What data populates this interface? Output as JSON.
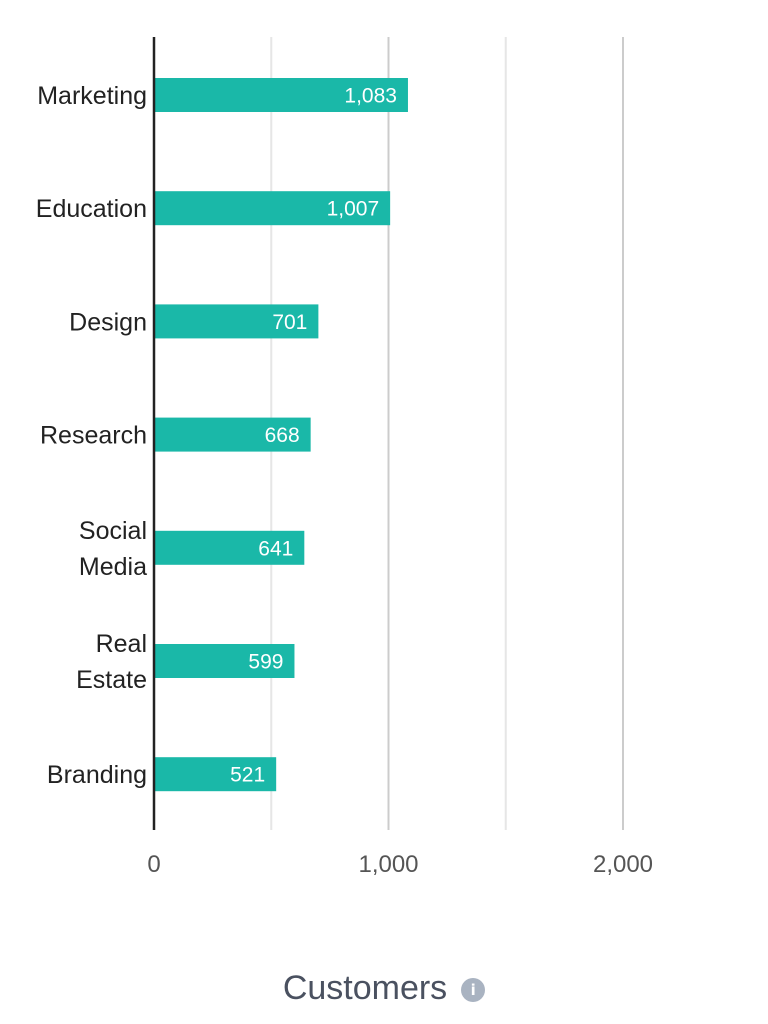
{
  "chart_data": {
    "type": "bar",
    "orientation": "horizontal",
    "categories": [
      "Marketing",
      "Education",
      "Design",
      "Research",
      "Social Media",
      "Real Estate",
      "Branding"
    ],
    "category_lines": [
      [
        "Marketing"
      ],
      [
        "Education"
      ],
      [
        "Design"
      ],
      [
        "Research"
      ],
      [
        "Social",
        "Media"
      ],
      [
        "Real",
        "Estate"
      ],
      [
        "Branding"
      ]
    ],
    "values": [
      1083,
      1007,
      701,
      668,
      641,
      599,
      521
    ],
    "value_labels": [
      "1,083",
      "1,007",
      "701",
      "668",
      "641",
      "599",
      "521"
    ],
    "xlabel": "Customers",
    "xlim": [
      0,
      2000
    ],
    "tick_values": [
      0,
      1000,
      2000
    ],
    "tick_labels": [
      "0",
      "1,000",
      "2,000"
    ],
    "minor_gridlines": [
      500,
      1500
    ],
    "grid": true,
    "bar_color": "#1ab8a8",
    "text_color": "#222222"
  },
  "info_icon": "info-icon",
  "info_glyph": "i"
}
